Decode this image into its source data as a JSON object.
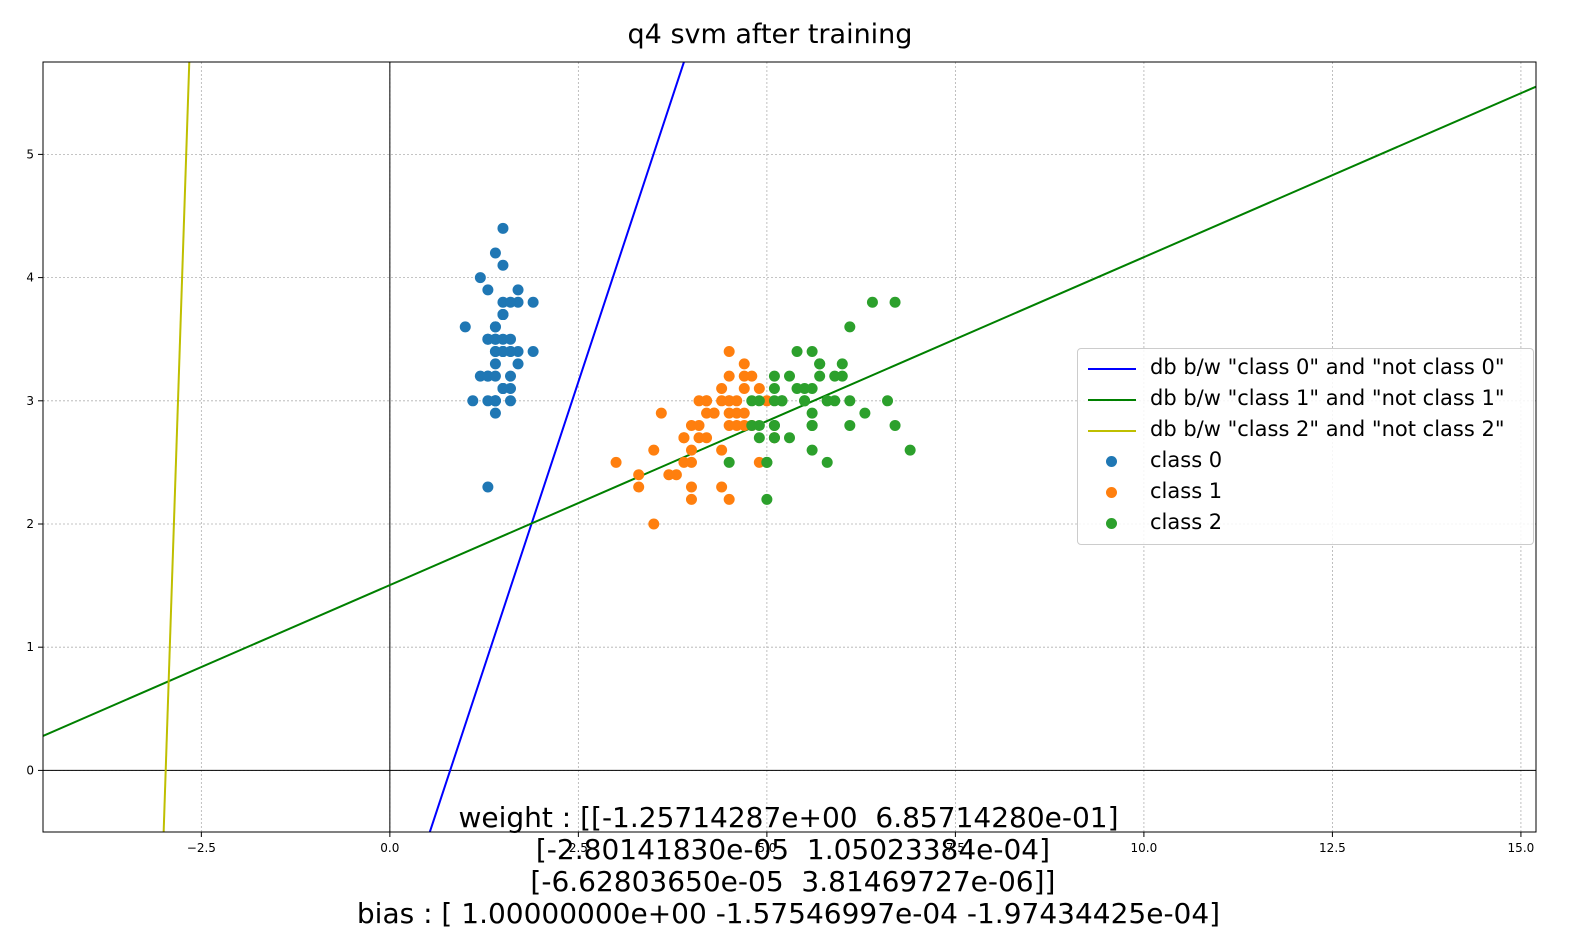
{
  "chart_data": {
    "type": "scatter",
    "title": "q4 svm after training",
    "xlabel": "",
    "ylabel": "",
    "xlim": [
      -4.6,
      15.2
    ],
    "ylim": [
      -0.5,
      5.75
    ],
    "grid": true,
    "legend_placement": "center-right",
    "x_ticks": [
      "−2.5",
      "0.0",
      "2.5",
      "5.0",
      "7.5",
      "10.0",
      "12.5",
      "15.0"
    ],
    "x_tick_values": [
      -2.5,
      0,
      2.5,
      5,
      7.5,
      10,
      12.5,
      15
    ],
    "y_ticks": [
      "0",
      "1",
      "2",
      "3",
      "4",
      "5"
    ],
    "y_tick_values": [
      0,
      1,
      2,
      3,
      4,
      5
    ],
    "lines": [
      {
        "name": "db b/w \"class 0\" and \"not class 0\"",
        "color": "#0000ff",
        "points": [
          [
            0.53,
            -0.5
          ],
          [
            3.9,
            5.75
          ]
        ]
      },
      {
        "name": "db b/w \"class 1\" and \"not class 1\"",
        "color": "#008000",
        "points": [
          [
            -4.6,
            0.28
          ],
          [
            15.2,
            5.55
          ]
        ]
      },
      {
        "name": "db b/w \"class 2\" and \"not class 2\"",
        "color": "#bfbf00",
        "points": [
          [
            -3.0,
            -0.5
          ],
          [
            -2.66,
            5.75
          ]
        ]
      }
    ],
    "series": [
      {
        "name": "class 0",
        "color": "#1f77b4",
        "points": [
          [
            1.4,
            3.5
          ],
          [
            1.4,
            3.0
          ],
          [
            1.3,
            3.2
          ],
          [
            1.5,
            3.1
          ],
          [
            1.4,
            3.6
          ],
          [
            1.7,
            3.9
          ],
          [
            1.4,
            3.4
          ],
          [
            1.5,
            3.4
          ],
          [
            1.4,
            2.9
          ],
          [
            1.5,
            3.1
          ],
          [
            1.5,
            3.7
          ],
          [
            1.6,
            3.4
          ],
          [
            1.4,
            3.0
          ],
          [
            1.1,
            3.0
          ],
          [
            1.2,
            4.0
          ],
          [
            1.5,
            4.4
          ],
          [
            1.3,
            3.9
          ],
          [
            1.4,
            3.5
          ],
          [
            1.7,
            3.8
          ],
          [
            1.5,
            3.8
          ],
          [
            1.7,
            3.4
          ],
          [
            1.5,
            3.7
          ],
          [
            1.0,
            3.6
          ],
          [
            1.7,
            3.3
          ],
          [
            1.9,
            3.4
          ],
          [
            1.6,
            3.0
          ],
          [
            1.6,
            3.4
          ],
          [
            1.5,
            3.5
          ],
          [
            1.4,
            3.4
          ],
          [
            1.6,
            3.2
          ],
          [
            1.6,
            3.1
          ],
          [
            1.5,
            3.4
          ],
          [
            1.5,
            4.1
          ],
          [
            1.4,
            4.2
          ],
          [
            1.5,
            3.1
          ],
          [
            1.2,
            3.2
          ],
          [
            1.3,
            3.5
          ],
          [
            1.4,
            3.6
          ],
          [
            1.3,
            3.0
          ],
          [
            1.5,
            3.4
          ],
          [
            1.3,
            3.5
          ],
          [
            1.3,
            2.3
          ],
          [
            1.3,
            3.2
          ],
          [
            1.6,
            3.5
          ],
          [
            1.9,
            3.8
          ],
          [
            1.4,
            3.0
          ],
          [
            1.6,
            3.8
          ],
          [
            1.4,
            3.2
          ],
          [
            1.5,
            3.7
          ],
          [
            1.4,
            3.3
          ]
        ]
      },
      {
        "name": "class 1",
        "color": "#ff7f0e",
        "points": [
          [
            4.7,
            3.2
          ],
          [
            4.5,
            3.2
          ],
          [
            4.9,
            3.1
          ],
          [
            4.0,
            2.3
          ],
          [
            4.6,
            2.8
          ],
          [
            4.5,
            2.8
          ],
          [
            4.7,
            3.3
          ],
          [
            3.3,
            2.4
          ],
          [
            4.6,
            2.9
          ],
          [
            3.9,
            2.7
          ],
          [
            3.5,
            2.0
          ],
          [
            4.2,
            3.0
          ],
          [
            4.0,
            2.2
          ],
          [
            4.7,
            2.9
          ],
          [
            3.6,
            2.9
          ],
          [
            4.4,
            3.1
          ],
          [
            4.5,
            3.0
          ],
          [
            4.1,
            2.7
          ],
          [
            4.5,
            2.2
          ],
          [
            3.9,
            2.5
          ],
          [
            4.8,
            3.2
          ],
          [
            4.0,
            2.8
          ],
          [
            4.9,
            2.5
          ],
          [
            4.7,
            2.8
          ],
          [
            4.3,
            2.9
          ],
          [
            4.4,
            3.0
          ],
          [
            4.8,
            2.8
          ],
          [
            5.0,
            3.0
          ],
          [
            4.5,
            2.9
          ],
          [
            3.5,
            2.6
          ],
          [
            3.8,
            2.4
          ],
          [
            3.7,
            2.4
          ],
          [
            3.9,
            2.7
          ],
          [
            5.1,
            2.7
          ],
          [
            4.5,
            3.0
          ],
          [
            4.5,
            3.4
          ],
          [
            4.7,
            3.1
          ],
          [
            4.4,
            2.3
          ],
          [
            4.1,
            3.0
          ],
          [
            4.0,
            2.5
          ],
          [
            4.4,
            2.6
          ],
          [
            4.6,
            3.0
          ],
          [
            4.0,
            2.6
          ],
          [
            3.3,
            2.3
          ],
          [
            4.2,
            2.7
          ],
          [
            4.2,
            3.0
          ],
          [
            4.2,
            2.9
          ],
          [
            4.3,
            2.9
          ],
          [
            3.0,
            2.5
          ],
          [
            4.1,
            2.8
          ]
        ]
      },
      {
        "name": "class 2",
        "color": "#2ca02c",
        "points": [
          [
            6.0,
            3.3
          ],
          [
            5.1,
            2.7
          ],
          [
            5.9,
            3.0
          ],
          [
            5.6,
            2.9
          ],
          [
            5.8,
            3.0
          ],
          [
            6.6,
            3.0
          ],
          [
            4.5,
            2.5
          ],
          [
            6.3,
            2.9
          ],
          [
            5.8,
            2.5
          ],
          [
            6.1,
            3.6
          ],
          [
            5.1,
            3.2
          ],
          [
            5.3,
            2.7
          ],
          [
            5.5,
            3.0
          ],
          [
            5.0,
            2.5
          ],
          [
            5.1,
            2.8
          ],
          [
            5.3,
            3.2
          ],
          [
            5.5,
            3.0
          ],
          [
            6.7,
            3.8
          ],
          [
            6.9,
            2.6
          ],
          [
            5.0,
            2.2
          ],
          [
            5.7,
            3.2
          ],
          [
            4.9,
            2.8
          ],
          [
            6.7,
            2.8
          ],
          [
            4.9,
            2.7
          ],
          [
            5.7,
            3.3
          ],
          [
            6.0,
            3.2
          ],
          [
            4.8,
            2.8
          ],
          [
            4.9,
            3.0
          ],
          [
            5.6,
            2.8
          ],
          [
            5.8,
            3.0
          ],
          [
            6.1,
            2.8
          ],
          [
            6.4,
            3.8
          ],
          [
            5.6,
            2.8
          ],
          [
            5.1,
            2.8
          ],
          [
            5.6,
            2.6
          ],
          [
            6.1,
            3.0
          ],
          [
            5.6,
            3.4
          ],
          [
            5.5,
            3.1
          ],
          [
            4.8,
            3.0
          ],
          [
            5.4,
            3.1
          ],
          [
            5.6,
            3.1
          ],
          [
            5.1,
            3.1
          ],
          [
            5.1,
            2.7
          ],
          [
            5.9,
            3.2
          ],
          [
            5.7,
            3.3
          ],
          [
            5.2,
            3.0
          ],
          [
            5.0,
            2.5
          ],
          [
            5.2,
            3.0
          ],
          [
            5.4,
            3.4
          ],
          [
            5.1,
            3.0
          ]
        ]
      }
    ]
  },
  "footer": {
    "line1": "weight : [[-1.25714287e+00  6.85714280e-01]",
    "line2": " [-2.80141830e-05  1.05023384e-04]",
    "line3": " [-6.62803650e-05  3.81469727e-06]]",
    "line4": "bias : [ 1.00000000e+00 -1.57546997e-04 -1.97434425e-04]"
  }
}
